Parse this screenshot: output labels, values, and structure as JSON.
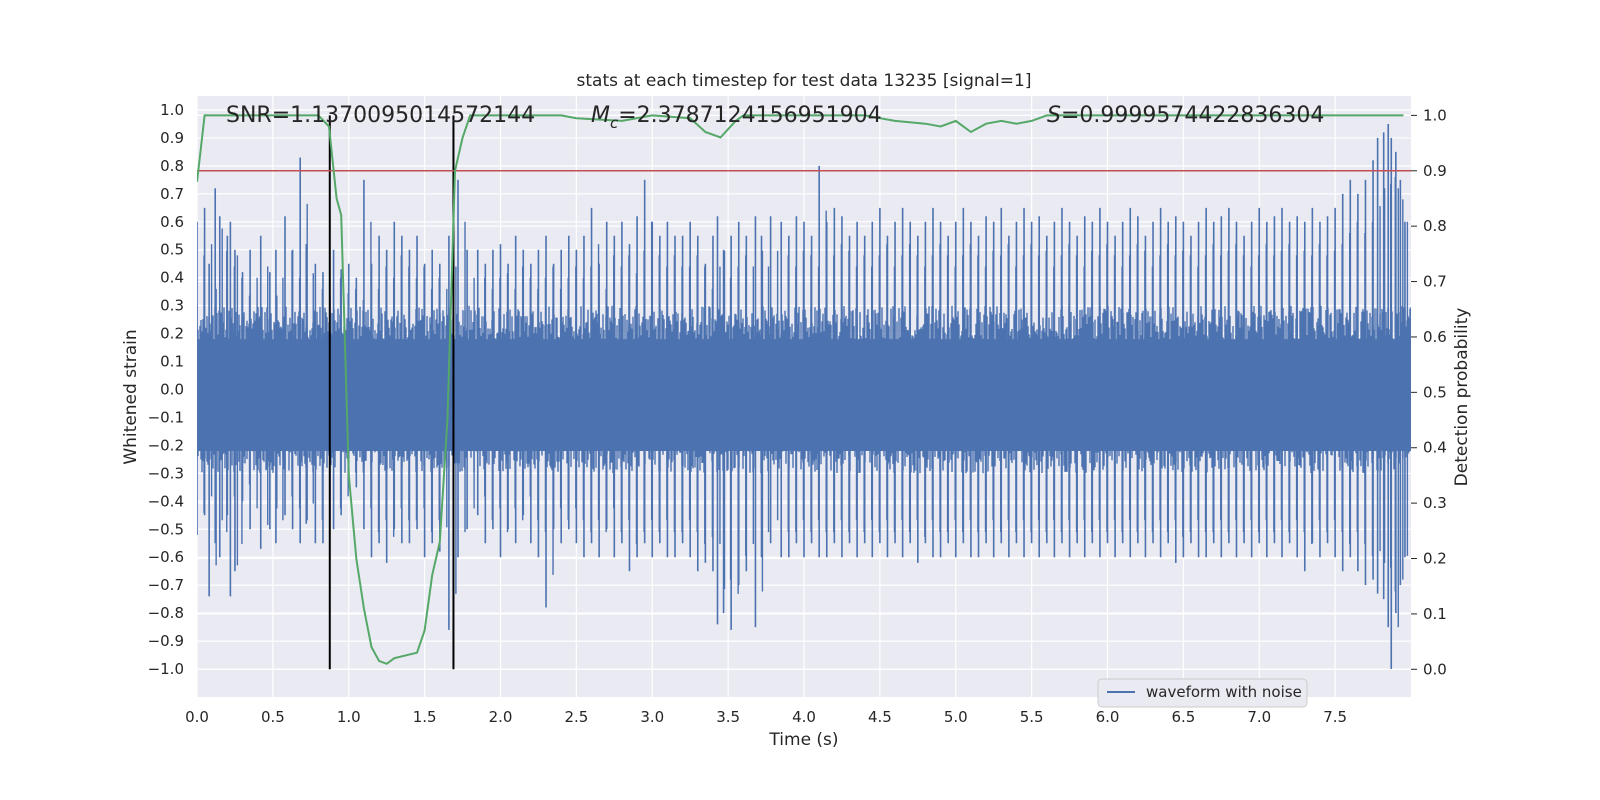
{
  "chart_data": {
    "type": "line",
    "title": "stats at each timestep for test data 13235 [signal=1]",
    "xlabel": "Time (s)",
    "ylabel": "Whitened strain",
    "y2label": "Detection probability",
    "xlim": [
      0.0,
      8.0
    ],
    "ylim": [
      -1.1,
      1.05
    ],
    "y2lim": [
      -0.05,
      1.035
    ],
    "x_ticks": [
      "0.0",
      "0.5",
      "1.0",
      "1.5",
      "2.0",
      "2.5",
      "3.0",
      "3.5",
      "4.0",
      "4.5",
      "5.0",
      "5.5",
      "6.0",
      "6.5",
      "7.0",
      "7.5"
    ],
    "y_ticks": [
      "1.0",
      "0.9",
      "0.8",
      "0.7",
      "0.6",
      "0.5",
      "0.4",
      "0.3",
      "0.2",
      "0.1",
      "0.0",
      "−0.1",
      "−0.2",
      "−0.3",
      "−0.4",
      "−0.5",
      "−0.6",
      "−0.7",
      "−0.8",
      "−0.9",
      "−1.0"
    ],
    "y2_ticks": [
      "1.0",
      "0.9",
      "0.8",
      "0.7",
      "0.6",
      "0.5",
      "0.4",
      "0.3",
      "0.2",
      "0.1",
      "0.0"
    ],
    "annotations": {
      "snr": "SNR=1.1370095014572144",
      "mc_symbol": "M",
      "mc_sub": "c",
      "mc_value": "=2.3787124156951904",
      "s_symbol": "S",
      "s_value": "=0.9999574422836304"
    },
    "waveform": {
      "name": "waveform with noise",
      "color": "#4c72b0",
      "envelope_base": 0.3,
      "spikes": [
        [
          0.0,
          0.6,
          -0.52
        ],
        [
          0.05,
          0.65,
          -0.45
        ],
        [
          0.08,
          0.45,
          -0.74
        ],
        [
          0.12,
          0.72,
          -0.55
        ],
        [
          0.15,
          0.62,
          -0.6
        ],
        [
          0.2,
          0.55,
          -0.45
        ],
        [
          0.22,
          0.6,
          -0.74
        ],
        [
          0.25,
          0.5,
          -0.65
        ],
        [
          0.3,
          0.42,
          -0.4
        ],
        [
          0.35,
          0.5,
          -0.5
        ],
        [
          0.42,
          0.55,
          -0.57
        ],
        [
          0.48,
          0.42,
          -0.5
        ],
        [
          0.52,
          0.5,
          -0.55
        ],
        [
          0.58,
          0.62,
          -0.45
        ],
        [
          0.63,
          0.5,
          -0.5
        ],
        [
          0.68,
          0.83,
          -0.55
        ],
        [
          0.72,
          0.52,
          -0.48
        ],
        [
          0.78,
          0.45,
          -0.55
        ],
        [
          0.83,
          0.42,
          -0.55
        ],
        [
          0.9,
          0.5,
          -0.5
        ],
        [
          0.95,
          0.43,
          -0.45
        ],
        [
          1.0,
          0.45,
          -0.35
        ],
        [
          1.05,
          0.4,
          -0.35
        ],
        [
          1.1,
          0.75,
          -0.5
        ],
        [
          1.15,
          0.45,
          -0.6
        ],
        [
          1.2,
          0.55,
          -0.55
        ],
        [
          1.25,
          0.5,
          -0.62
        ],
        [
          1.3,
          0.6,
          -0.5
        ],
        [
          1.35,
          0.55,
          -0.55
        ],
        [
          1.4,
          0.5,
          -0.55
        ],
        [
          1.45,
          0.55,
          -0.5
        ],
        [
          1.5,
          0.45,
          -0.6
        ],
        [
          1.55,
          0.5,
          -0.55
        ],
        [
          1.6,
          0.45,
          -0.58
        ],
        [
          1.66,
          0.55,
          -0.86
        ],
        [
          1.72,
          0.75,
          -0.6
        ],
        [
          1.78,
          0.5,
          -0.5
        ],
        [
          1.85,
          0.5,
          -0.45
        ],
        [
          1.9,
          0.45,
          -0.55
        ],
        [
          1.95,
          0.5,
          -0.5
        ],
        [
          2.0,
          0.52,
          -0.6
        ],
        [
          2.05,
          0.45,
          -0.5
        ],
        [
          2.1,
          0.55,
          -0.55
        ],
        [
          2.15,
          0.5,
          -0.45
        ],
        [
          2.2,
          0.45,
          -0.55
        ],
        [
          2.25,
          0.5,
          -0.6
        ],
        [
          2.3,
          0.55,
          -0.78
        ],
        [
          2.35,
          0.45,
          -0.5
        ],
        [
          2.4,
          0.5,
          -0.55
        ],
        [
          2.45,
          0.55,
          -0.5
        ],
        [
          2.5,
          0.5,
          -0.55
        ],
        [
          2.55,
          0.55,
          -0.6
        ],
        [
          2.6,
          0.65,
          -0.55
        ],
        [
          2.65,
          0.45,
          -0.6
        ],
        [
          2.7,
          0.6,
          -0.5
        ],
        [
          2.75,
          0.55,
          -0.6
        ],
        [
          2.8,
          0.6,
          -0.55
        ],
        [
          2.85,
          0.52,
          -0.65
        ],
        [
          2.9,
          0.62,
          -0.6
        ],
        [
          2.95,
          0.75,
          -0.55
        ],
        [
          3.0,
          0.6,
          -0.6
        ],
        [
          3.05,
          0.55,
          -0.55
        ],
        [
          3.1,
          0.6,
          -0.6
        ],
        [
          3.15,
          0.55,
          -0.6
        ],
        [
          3.2,
          0.55,
          -0.55
        ],
        [
          3.25,
          0.6,
          -0.6
        ],
        [
          3.3,
          0.55,
          -0.65
        ],
        [
          3.35,
          0.45,
          -0.62
        ],
        [
          3.4,
          0.55,
          -0.65
        ],
        [
          3.43,
          0.62,
          -0.84
        ],
        [
          3.47,
          0.5,
          -0.8
        ],
        [
          3.52,
          0.55,
          -0.86
        ],
        [
          3.57,
          0.6,
          -0.7
        ],
        [
          3.62,
          0.55,
          -0.65
        ],
        [
          3.68,
          0.62,
          -0.85
        ],
        [
          3.72,
          0.55,
          -0.6
        ],
        [
          3.78,
          0.62,
          -0.55
        ],
        [
          3.85,
          0.6,
          -0.6
        ],
        [
          3.9,
          0.55,
          -0.6
        ],
        [
          3.95,
          0.62,
          -0.55
        ],
        [
          4.0,
          0.6,
          -0.6
        ],
        [
          4.05,
          0.55,
          -0.55
        ],
        [
          4.1,
          0.8,
          -0.6
        ],
        [
          4.15,
          0.6,
          -0.6
        ],
        [
          4.2,
          0.65,
          -0.55
        ],
        [
          4.25,
          0.62,
          -0.6
        ],
        [
          4.3,
          0.55,
          -0.55
        ],
        [
          4.35,
          0.6,
          -0.6
        ],
        [
          4.4,
          0.55,
          -0.55
        ],
        [
          4.45,
          0.6,
          -0.6
        ],
        [
          4.5,
          0.65,
          -0.55
        ],
        [
          4.55,
          0.55,
          -0.6
        ],
        [
          4.6,
          0.6,
          -0.55
        ],
        [
          4.65,
          0.65,
          -0.6
        ],
        [
          4.7,
          0.6,
          -0.55
        ],
        [
          4.75,
          0.55,
          -0.62
        ],
        [
          4.8,
          0.6,
          -0.55
        ],
        [
          4.85,
          0.65,
          -0.6
        ],
        [
          4.9,
          0.6,
          -0.6
        ],
        [
          4.95,
          0.55,
          -0.55
        ],
        [
          5.0,
          0.6,
          -0.6
        ],
        [
          5.05,
          0.65,
          -0.55
        ],
        [
          5.1,
          0.6,
          -0.6
        ],
        [
          5.15,
          0.55,
          -0.6
        ],
        [
          5.2,
          0.62,
          -0.55
        ],
        [
          5.25,
          0.6,
          -0.6
        ],
        [
          5.3,
          0.65,
          -0.55
        ],
        [
          5.35,
          0.55,
          -0.6
        ],
        [
          5.4,
          0.6,
          -0.55
        ],
        [
          5.45,
          0.65,
          -0.6
        ],
        [
          5.5,
          0.6,
          -0.55
        ],
        [
          5.55,
          0.62,
          -0.6
        ],
        [
          5.6,
          0.55,
          -0.55
        ],
        [
          5.65,
          0.6,
          -0.6
        ],
        [
          5.7,
          0.65,
          -0.55
        ],
        [
          5.75,
          0.6,
          -0.6
        ],
        [
          5.8,
          0.55,
          -0.55
        ],
        [
          5.85,
          0.62,
          -0.6
        ],
        [
          5.9,
          0.6,
          -0.55
        ],
        [
          5.95,
          0.65,
          -0.6
        ],
        [
          6.0,
          0.6,
          -0.55
        ],
        [
          6.05,
          0.55,
          -0.6
        ],
        [
          6.1,
          0.6,
          -0.55
        ],
        [
          6.15,
          0.65,
          -0.6
        ],
        [
          6.2,
          0.62,
          -0.55
        ],
        [
          6.25,
          0.55,
          -0.6
        ],
        [
          6.3,
          0.6,
          -0.55
        ],
        [
          6.35,
          0.65,
          -0.6
        ],
        [
          6.4,
          0.6,
          -0.55
        ],
        [
          6.45,
          0.62,
          -0.62
        ],
        [
          6.5,
          0.6,
          -0.6
        ],
        [
          6.55,
          0.55,
          -0.55
        ],
        [
          6.6,
          0.6,
          -0.6
        ],
        [
          6.65,
          0.65,
          -0.6
        ],
        [
          6.7,
          0.6,
          -0.55
        ],
        [
          6.75,
          0.62,
          -0.6
        ],
        [
          6.8,
          0.65,
          -0.55
        ],
        [
          6.85,
          0.6,
          -0.6
        ],
        [
          6.9,
          0.55,
          -0.55
        ],
        [
          6.95,
          0.6,
          -0.6
        ],
        [
          7.0,
          0.65,
          -0.55
        ],
        [
          7.05,
          0.6,
          -0.6
        ],
        [
          7.1,
          0.62,
          -0.55
        ],
        [
          7.15,
          0.65,
          -0.6
        ],
        [
          7.2,
          0.6,
          -0.55
        ],
        [
          7.25,
          0.62,
          -0.6
        ],
        [
          7.3,
          0.6,
          -0.65
        ],
        [
          7.35,
          0.65,
          -0.55
        ],
        [
          7.4,
          0.6,
          -0.6
        ],
        [
          7.45,
          0.62,
          -0.55
        ],
        [
          7.5,
          0.65,
          -0.6
        ],
        [
          7.55,
          0.7,
          -0.65
        ],
        [
          7.6,
          0.75,
          -0.6
        ],
        [
          7.65,
          0.7,
          -0.65
        ],
        [
          7.7,
          0.75,
          -0.7
        ],
        [
          7.75,
          0.82,
          -0.68
        ],
        [
          7.78,
          0.9,
          -0.73
        ],
        [
          7.82,
          0.92,
          -0.75
        ],
        [
          7.85,
          0.95,
          -0.85
        ],
        [
          7.87,
          0.9,
          -1.0
        ],
        [
          7.9,
          0.85,
          -0.8
        ],
        [
          7.93,
          0.75,
          -0.7
        ],
        [
          7.96,
          0.6,
          -0.6
        ]
      ]
    },
    "probability": {
      "color": "#55a868",
      "points": [
        [
          0.0,
          0.88
        ],
        [
          0.05,
          1.0
        ],
        [
          0.2,
          1.0
        ],
        [
          0.5,
          1.0
        ],
        [
          0.8,
          1.0
        ],
        [
          0.87,
          0.98
        ],
        [
          0.92,
          0.85
        ],
        [
          0.95,
          0.82
        ],
        [
          1.0,
          0.35
        ],
        [
          1.05,
          0.2
        ],
        [
          1.1,
          0.11
        ],
        [
          1.15,
          0.04
        ],
        [
          1.2,
          0.015
        ],
        [
          1.25,
          0.01
        ],
        [
          1.3,
          0.02
        ],
        [
          1.45,
          0.03
        ],
        [
          1.5,
          0.07
        ],
        [
          1.55,
          0.17
        ],
        [
          1.6,
          0.23
        ],
        [
          1.65,
          0.45
        ],
        [
          1.7,
          0.9
        ],
        [
          1.75,
          0.96
        ],
        [
          1.8,
          1.0
        ],
        [
          2.0,
          1.0
        ],
        [
          2.4,
          1.0
        ],
        [
          2.5,
          0.995
        ],
        [
          2.8,
          0.99
        ],
        [
          3.0,
          1.0
        ],
        [
          3.25,
          0.995
        ],
        [
          3.35,
          0.97
        ],
        [
          3.45,
          0.96
        ],
        [
          3.55,
          0.99
        ],
        [
          3.6,
          1.0
        ],
        [
          4.4,
          1.0
        ],
        [
          4.6,
          0.99
        ],
        [
          4.8,
          0.985
        ],
        [
          4.9,
          0.98
        ],
        [
          5.0,
          0.99
        ],
        [
          5.1,
          0.97
        ],
        [
          5.2,
          0.985
        ],
        [
          5.3,
          0.99
        ],
        [
          5.4,
          0.985
        ],
        [
          5.5,
          0.99
        ],
        [
          5.6,
          1.0
        ],
        [
          6.0,
          1.0
        ],
        [
          7.0,
          1.0
        ],
        [
          7.95,
          1.0
        ]
      ]
    },
    "threshold": {
      "value": 0.9,
      "color": "#c44e52"
    },
    "markers": {
      "x": [
        0.875,
        1.69
      ],
      "color": "#000000"
    },
    "legend": {
      "position": "lower-right",
      "entries": [
        "waveform with noise"
      ]
    }
  }
}
